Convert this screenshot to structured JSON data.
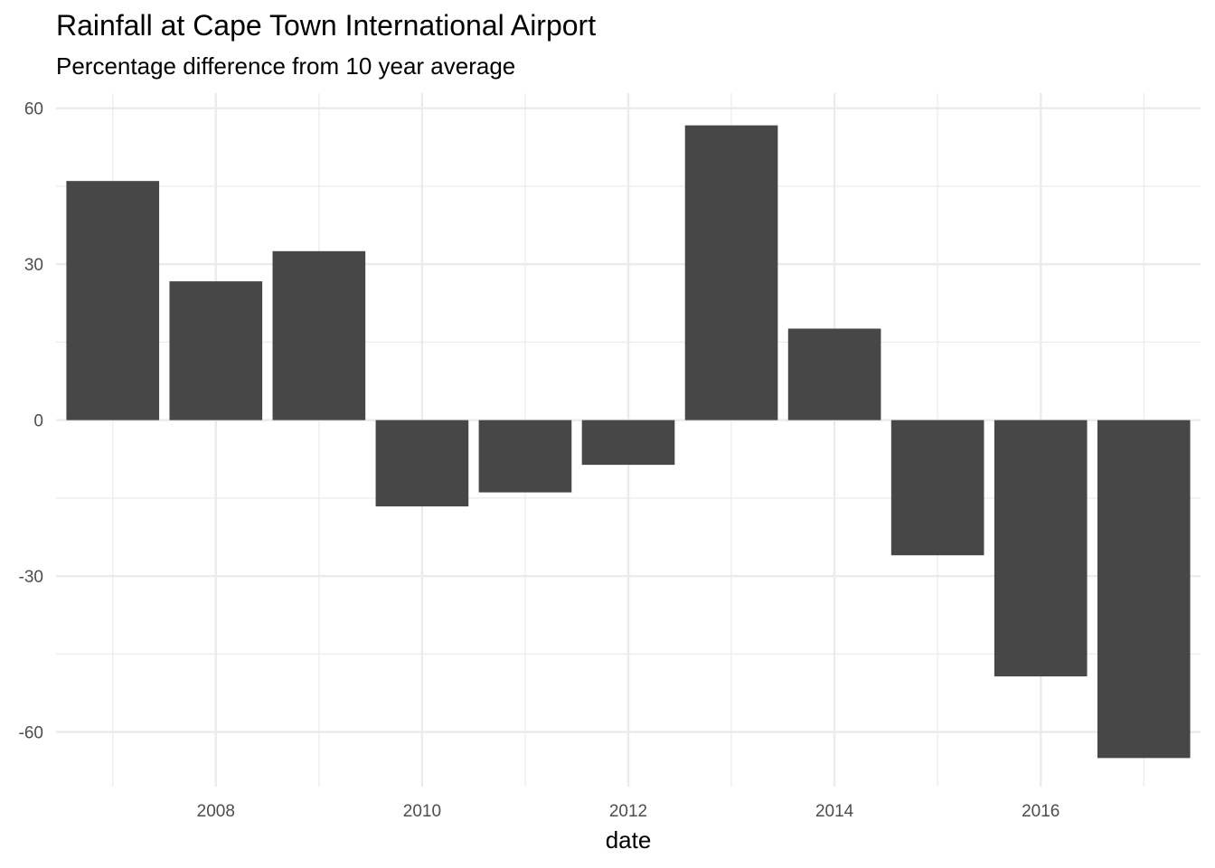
{
  "chart_data": {
    "type": "bar",
    "title": "Rainfall at Cape Town International Airport",
    "subtitle": "Percentage difference from 10 year average",
    "xlabel": "date",
    "ylabel": "",
    "x": [
      2007,
      2008,
      2009,
      2010,
      2011,
      2012,
      2013,
      2014,
      2015,
      2016,
      2017
    ],
    "values": [
      46,
      26.7,
      32.5,
      -16.6,
      -13.9,
      -8.6,
      56.7,
      17.6,
      -26,
      -49.3,
      -65
    ],
    "xlim": [
      2006.45,
      2017.55
    ],
    "ylim": [
      -70.5,
      62.9
    ],
    "x_major_ticks": [
      2008,
      2010,
      2012,
      2014,
      2016
    ],
    "x_minor_ticks": [
      2007,
      2009,
      2011,
      2013,
      2015,
      2017
    ],
    "y_major_ticks": [
      60,
      30,
      0,
      -30,
      -60
    ],
    "y_tick_labels": [
      "60",
      "30",
      "0",
      "-30",
      "-60"
    ],
    "y_minor_ticks": [
      45,
      15,
      -15,
      -45
    ],
    "grid": true,
    "legend": "none",
    "bar_color": "#474747",
    "grid_color": "#ebebeb"
  }
}
